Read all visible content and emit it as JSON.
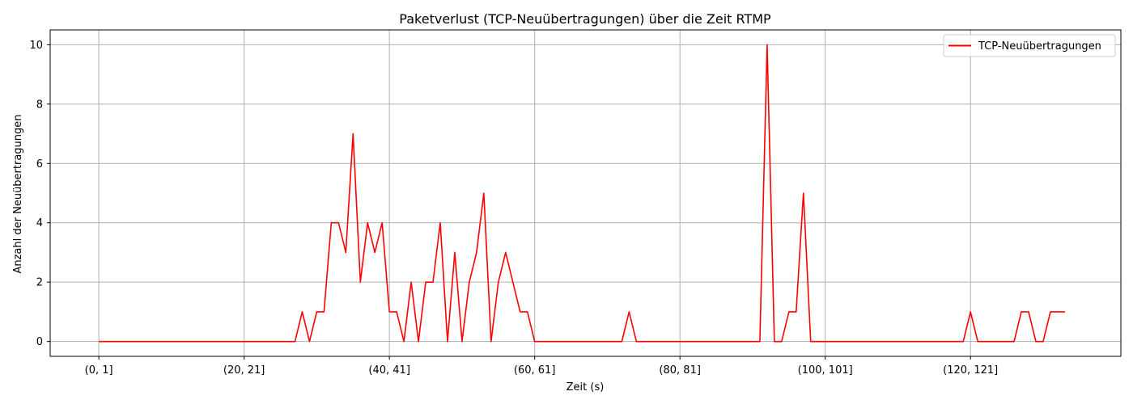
{
  "chart_data": {
    "type": "line",
    "title": "Paketverlust (TCP-Neuübertragungen) über die Zeit RTMP",
    "xlabel": "Zeit (s)",
    "ylabel": "Anzahl der Neuübertragungen",
    "x_tick_labels": [
      "(0, 1]",
      "(20, 21]",
      "(40, 41]",
      "(60, 61]",
      "(80, 81]",
      "(100, 101]",
      "(120, 121]"
    ],
    "y_ticks": [
      0,
      2,
      4,
      6,
      8,
      10
    ],
    "xlim": [
      -6.7,
      140.7
    ],
    "ylim": [
      -0.5,
      10.5
    ],
    "grid": true,
    "legend_position": "top-right",
    "series": [
      {
        "name": "TCP-Neuübertragungen",
        "color": "#ff0000",
        "x": [
          0,
          1,
          2,
          3,
          4,
          5,
          6,
          7,
          8,
          9,
          10,
          11,
          12,
          13,
          14,
          15,
          16,
          17,
          18,
          19,
          20,
          21,
          22,
          23,
          24,
          25,
          26,
          27,
          28,
          29,
          30,
          31,
          32,
          33,
          34,
          35,
          36,
          37,
          38,
          39,
          40,
          41,
          42,
          43,
          44,
          45,
          46,
          47,
          48,
          49,
          50,
          51,
          52,
          53,
          54,
          55,
          56,
          57,
          58,
          59,
          60,
          61,
          62,
          63,
          64,
          65,
          66,
          67,
          68,
          69,
          70,
          71,
          72,
          73,
          74,
          75,
          76,
          77,
          78,
          79,
          80,
          81,
          82,
          83,
          84,
          85,
          86,
          87,
          88,
          89,
          90,
          91,
          92,
          93,
          94,
          95,
          96,
          97,
          98,
          99,
          100,
          101,
          102,
          103,
          104,
          105,
          106,
          107,
          108,
          109,
          110,
          111,
          112,
          113,
          114,
          115,
          116,
          117,
          118,
          119,
          120,
          121,
          122,
          123,
          124,
          125,
          126,
          127,
          128,
          129,
          130,
          131,
          132,
          133
        ],
        "y": [
          0,
          0,
          0,
          0,
          0,
          0,
          0,
          0,
          0,
          0,
          0,
          0,
          0,
          0,
          0,
          0,
          0,
          0,
          0,
          0,
          0,
          0,
          0,
          0,
          0,
          0,
          0,
          0,
          1,
          0,
          1,
          1,
          4,
          4,
          3,
          7,
          2,
          4,
          3,
          4,
          1,
          1,
          0,
          2,
          0,
          2,
          2,
          4,
          0,
          3,
          0,
          2,
          3,
          5,
          0,
          2,
          3,
          2,
          1,
          1,
          0,
          0,
          0,
          0,
          0,
          0,
          0,
          0,
          0,
          0,
          0,
          0,
          0,
          1,
          0,
          0,
          0,
          0,
          0,
          0,
          0,
          0,
          0,
          0,
          0,
          0,
          0,
          0,
          0,
          0,
          0,
          0,
          10,
          0,
          0,
          1,
          1,
          5,
          0,
          0,
          0,
          0,
          0,
          0,
          0,
          0,
          0,
          0,
          0,
          0,
          0,
          0,
          0,
          0,
          0,
          0,
          0,
          0,
          0,
          0,
          1,
          0,
          0,
          0,
          0,
          0,
          0,
          1,
          1,
          0,
          0,
          1,
          1,
          1
        ]
      }
    ]
  }
}
